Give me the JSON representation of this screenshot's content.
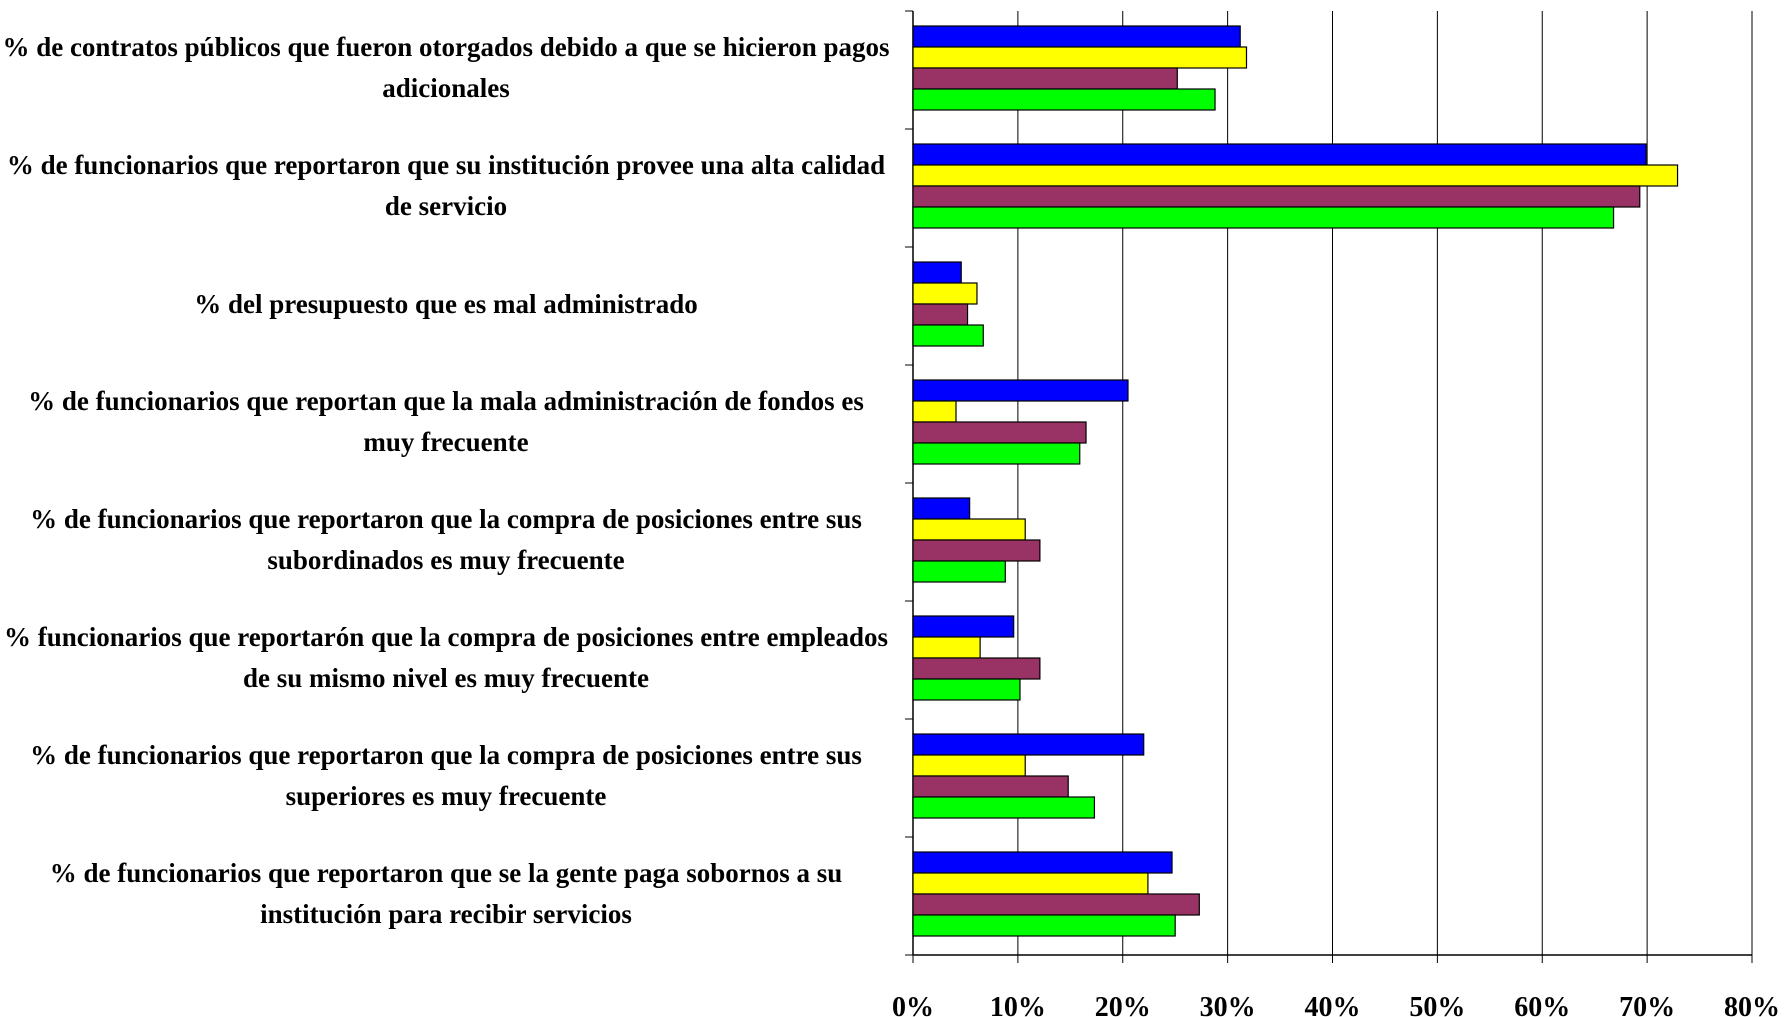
{
  "chart_data": {
    "type": "bar",
    "orientation": "horizontal",
    "categories": [
      "% de contratos públicos que fueron otorgados debido a que se hicieron pagos adicionales",
      "% de funcionarios que reportaron que su institución provee una alta calidad de servicio",
      "% del presupuesto que es mal administrado",
      "% de funcionarios que reportan que la mala administración de fondos es muy frecuente",
      "% de funcionarios que reportaron que la compra de posiciones entre sus subordinados es muy frecuente",
      "% funcionarios que reportarón que la compra de posiciones entre empleados de su mismo nivel es muy frecuente",
      "% de funcionarios que reportaron que la compra de posiciones entre sus superiores es muy frecuente",
      "% de funcionarios que reportaron que se la gente paga sobornos a su institución para recibir servicios"
    ],
    "series": [
      {
        "color": "#0000ff",
        "values": [
          31.2,
          69.9,
          4.6,
          20.5,
          5.4,
          9.6,
          22.0,
          24.7
        ]
      },
      {
        "color": "#ffff00",
        "values": [
          31.8,
          72.9,
          6.1,
          4.1,
          10.7,
          6.4,
          10.7,
          22.4
        ]
      },
      {
        "color": "#993366",
        "values": [
          25.2,
          69.3,
          5.2,
          16.5,
          12.1,
          12.1,
          14.8,
          27.3
        ]
      },
      {
        "color": "#00ff00",
        "values": [
          28.8,
          66.8,
          6.7,
          15.9,
          8.8,
          10.2,
          17.3,
          25.0
        ]
      }
    ],
    "xlim": [
      0,
      80
    ],
    "xticks": [
      {
        "value": 0,
        "label": "0%"
      },
      {
        "value": 10,
        "label": "10%"
      },
      {
        "value": 20,
        "label": "20%"
      },
      {
        "value": 30,
        "label": "30%"
      },
      {
        "value": 40,
        "label": "40%"
      },
      {
        "value": 50,
        "label": "50%"
      },
      {
        "value": 60,
        "label": "60%"
      },
      {
        "value": 70,
        "label": "70%"
      },
      {
        "value": 80,
        "label": "80%"
      }
    ],
    "grid": true
  }
}
